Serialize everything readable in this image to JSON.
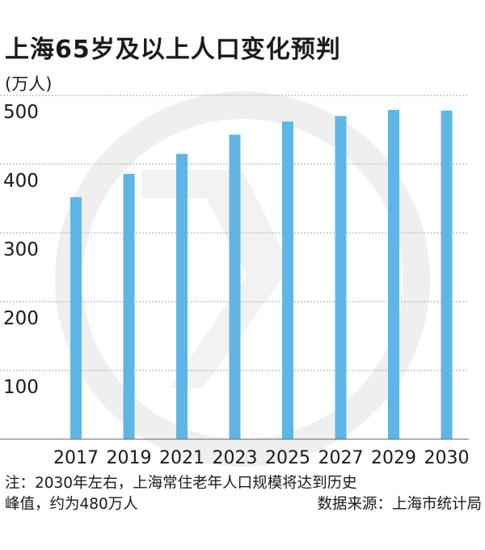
{
  "title": "上海65岁及以上人口变化预判",
  "unit_label": "(万人)",
  "note": {
    "line1": "注：2030年左右，上海常住老年人口规模将达到历史",
    "line2": "峰值，约为480万人",
    "source": "数据来源：上海市统计局"
  },
  "colors": {
    "bar": "#5fb6e6",
    "grid": "#a6a6a6",
    "axis": "#666666",
    "watermark": "#eeeeee"
  },
  "chart_data": {
    "type": "bar",
    "categories": [
      "2017",
      "2019",
      "2021",
      "2023",
      "2025",
      "2027",
      "2029",
      "2030"
    ],
    "values": [
      352,
      386,
      415,
      443,
      462,
      470,
      479,
      478
    ],
    "yticks": [
      100,
      200,
      300,
      400,
      500
    ],
    "ylim": [
      0,
      500
    ],
    "ylabel": "(万人)",
    "grid": true
  }
}
